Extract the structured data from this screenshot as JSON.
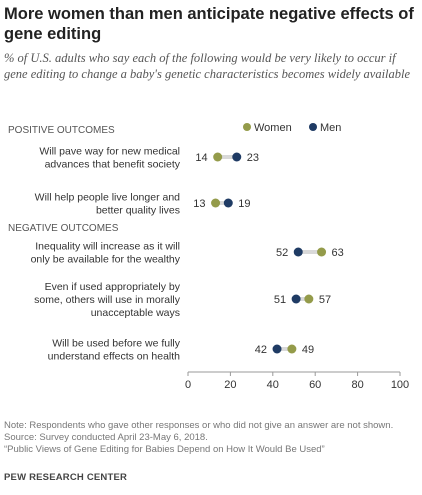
{
  "title": "More women than men anticipate negative effects of gene editing",
  "subtitle": "% of U.S. adults who say each of the following would be very likely to occur if gene editing to change a baby's genetic characteristics becomes widely available",
  "footnotes": {
    "note": "Note: Respondents who gave other responses or who did not give an answer are not shown.",
    "source": "Source: Survey conducted April 23-May 6, 2018.",
    "report": "“Public Views of Gene Editing for Babies Depend on How It Would Be Used”"
  },
  "source_org": "PEW RESEARCH CENTER",
  "colors": {
    "women": "#949b4a",
    "men": "#1f3b64",
    "connector": "#d9d9d9",
    "axis": "#999999",
    "tick_text": "#333333"
  },
  "chart_data": {
    "type": "dot",
    "legend_position": "top-right",
    "xlim": [
      0,
      100
    ],
    "xticks": [
      "0",
      "20",
      "40",
      "60",
      "80",
      "100"
    ],
    "xtick_values": [
      0,
      20,
      40,
      60,
      80,
      100
    ],
    "grid": false,
    "series": [
      {
        "name": "Women",
        "values": [
          14,
          13,
          63,
          57,
          49
        ]
      },
      {
        "name": "Men",
        "values": [
          23,
          19,
          52,
          51,
          42
        ]
      }
    ],
    "groups": [
      {
        "label": "POSITIVE OUTCOMES",
        "categories": [
          0,
          1
        ]
      },
      {
        "label": "NEGATIVE OUTCOMES",
        "categories": [
          2,
          3,
          4
        ]
      }
    ],
    "categories": [
      {
        "lines": [
          "Will pave way for new medical",
          "advances that benefit society"
        ],
        "women": 14,
        "men": 23
      },
      {
        "lines": [
          "Will help people live longer and",
          "better quality lives"
        ],
        "women": 13,
        "men": 19
      },
      {
        "lines": [
          "Inequality will increase as it will",
          "only be available for the wealthy"
        ],
        "women": 63,
        "men": 52
      },
      {
        "lines": [
          "Even if used appropriately by",
          "some, others will use in morally",
          "unacceptable ways"
        ],
        "women": 57,
        "men": 51
      },
      {
        "lines": [
          "Will be used before we fully",
          "understand effects on health"
        ],
        "women": 49,
        "men": 42
      }
    ]
  }
}
